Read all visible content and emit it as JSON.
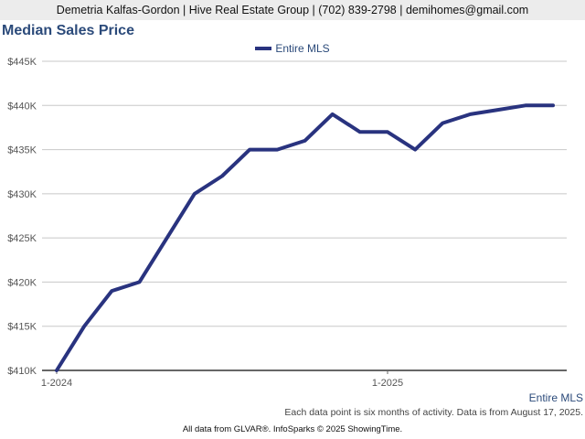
{
  "header": {
    "contact_line": "Demetria Kalfas-Gordon | Hive Real Estate Group | (702) 839-2798 | demihomes@gmail.com"
  },
  "chart_title": "Median Sales Price",
  "colors": {
    "series": "#29337f",
    "title": "#2b4a7a",
    "grid": "#c8c8c8"
  },
  "chart_data": {
    "type": "line",
    "title": "Median Sales Price",
    "xlabel": "",
    "ylabel": "",
    "ylim": [
      410000,
      445000
    ],
    "yticks": [
      410000,
      415000,
      420000,
      425000,
      430000,
      435000,
      440000,
      445000
    ],
    "ytick_labels": [
      "$410K",
      "$415K",
      "$420K",
      "$425K",
      "$430K",
      "$435K",
      "$440K",
      "$445K"
    ],
    "xticks": [
      "2024-01",
      "2025-01"
    ],
    "xtick_labels": [
      "1-2024",
      "1-2025"
    ],
    "grid": true,
    "legend_position": "top-center",
    "series": [
      {
        "name": "Entire MLS",
        "x": [
          "2024-01",
          "2024-02",
          "2024-03",
          "2024-04",
          "2024-05",
          "2024-06",
          "2024-07",
          "2024-08",
          "2024-09",
          "2024-10",
          "2024-11",
          "2024-12",
          "2025-01",
          "2025-02",
          "2025-03",
          "2025-04",
          "2025-05",
          "2025-06",
          "2025-07"
        ],
        "values": [
          410000,
          415000,
          419000,
          420000,
          425000,
          430000,
          432000,
          435000,
          435000,
          436000,
          439000,
          437000,
          437000,
          435000,
          438000,
          439000,
          439500,
          440000,
          440000
        ]
      }
    ]
  },
  "series_label": "Entire MLS",
  "footnote": "Each data point is six months of activity. Data is from August 17, 2025.",
  "credit": "All data from GLVAR®. InfoSparks © 2025 ShowingTime."
}
